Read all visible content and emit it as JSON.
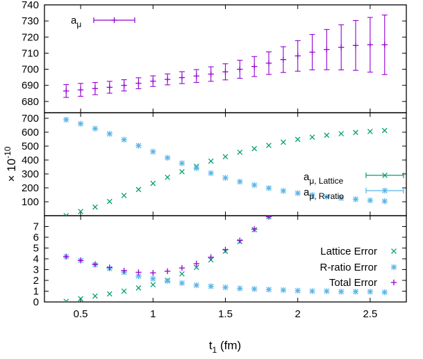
{
  "colors": {
    "purple": "#9400d3",
    "green": "#009e73",
    "blue": "#56b4e9"
  },
  "chart_data": [
    {
      "type": "scatter",
      "panel": "top",
      "xlabel": "t1 (fm)",
      "xlabel_parts": {
        "main": "t",
        "sub": "1",
        "rest": " (fm)"
      },
      "xlim": [
        0.25,
        2.75
      ],
      "ylim": [
        673,
        740
      ],
      "x_ticks": [
        0.5,
        1,
        1.5,
        2,
        2.5
      ],
      "x_tick_labels": [
        "0.5",
        "1",
        "1.5",
        "2",
        "2.5"
      ],
      "y_ticks": [
        680,
        690,
        700,
        710,
        720,
        730,
        740
      ],
      "y_tick_labels": [
        "680",
        "690",
        "700",
        "710",
        "720",
        "730",
        "740"
      ],
      "legend_position": "top-left",
      "series": [
        {
          "name": "aμ",
          "name_parts": {
            "main": "a",
            "sub": "μ"
          },
          "color": "#9400d3",
          "marker": "plus",
          "x": [
            0.4,
            0.5,
            0.6,
            0.7,
            0.8,
            0.9,
            1.0,
            1.1,
            1.2,
            1.3,
            1.4,
            1.5,
            1.6,
            1.7,
            1.8,
            1.9,
            2.0,
            2.1,
            2.2,
            2.3,
            2.4,
            2.5,
            2.6
          ],
          "y": [
            686.5,
            687.2,
            688.0,
            688.8,
            690.0,
            691.3,
            692.6,
            693.7,
            694.8,
            695.8,
            697.0,
            698.4,
            700.0,
            701.7,
            703.8,
            706.0,
            708.3,
            710.6,
            712.2,
            713.6,
            714.8,
            715.2,
            715.2
          ],
          "yerr": [
            4.0,
            4.0,
            3.8,
            3.7,
            3.5,
            3.4,
            3.3,
            3.4,
            3.7,
            4.0,
            4.5,
            5.0,
            5.6,
            6.2,
            7.0,
            8.0,
            9.5,
            11.0,
            12.5,
            14.0,
            15.5,
            17.0,
            18.5
          ]
        }
      ]
    },
    {
      "type": "scatter",
      "panel": "middle",
      "ylabel": "× 10-10",
      "ylabel_parts": {
        "main": "× 10",
        "sup": "-10"
      },
      "xlim": [
        0.25,
        2.75
      ],
      "ylim": [
        0,
        740
      ],
      "y_ticks": [
        100,
        200,
        300,
        400,
        500,
        600,
        700
      ],
      "y_tick_labels": [
        "100",
        "200",
        "300",
        "400",
        "500",
        "600",
        "700"
      ],
      "legend_position": "center-right",
      "series": [
        {
          "name": "aμ, Lattice",
          "name_parts": {
            "main": "a",
            "sub": "μ, Lattice"
          },
          "color": "#009e73",
          "marker": "x",
          "x": [
            0.4,
            0.5,
            0.6,
            0.7,
            0.8,
            0.9,
            1.0,
            1.1,
            1.2,
            1.3,
            1.4,
            1.5,
            1.6,
            1.7,
            1.8,
            1.9,
            2.0,
            2.1,
            2.2,
            2.3,
            2.4,
            2.5,
            2.6
          ],
          "y": [
            0,
            30,
            62,
            102,
            145,
            188,
            232,
            276,
            316,
            355,
            392,
            424,
            456,
            482,
            505,
            528,
            548,
            564,
            578,
            589,
            598,
            605,
            612
          ]
        },
        {
          "name": "aμ, R-ratio",
          "name_parts": {
            "main": "a",
            "sub": "μ, R-ratio"
          },
          "color": "#56b4e9",
          "marker": "star",
          "x": [
            0.4,
            0.5,
            0.6,
            0.7,
            0.8,
            0.9,
            1.0,
            1.1,
            1.2,
            1.3,
            1.4,
            1.5,
            1.6,
            1.7,
            1.8,
            1.9,
            2.0,
            2.1,
            2.2,
            2.3,
            2.4,
            2.5,
            2.6
          ],
          "y": [
            690,
            661,
            626,
            588,
            546,
            503,
            460,
            416,
            377,
            342,
            306,
            272,
            244,
            220,
            198,
            178,
            162,
            148,
            136,
            126,
            118,
            110,
            104
          ]
        }
      ]
    },
    {
      "type": "scatter",
      "panel": "bottom",
      "xlim": [
        0.25,
        2.75
      ],
      "ylim": [
        0,
        8
      ],
      "y_ticks": [
        0,
        1,
        2,
        3,
        4,
        5,
        6,
        7
      ],
      "y_tick_labels": [
        "0",
        "1",
        "2",
        "3",
        "4",
        "5",
        "6",
        "7"
      ],
      "legend_position": "center-right",
      "series": [
        {
          "name": "Lattice Error",
          "color": "#009e73",
          "marker": "x",
          "x": [
            0.4,
            0.5,
            0.6,
            0.7,
            0.8,
            0.9,
            1.0,
            1.1,
            1.2,
            1.3,
            1.4,
            1.5,
            1.6,
            1.7,
            1.8
          ],
          "y": [
            0.05,
            0.3,
            0.55,
            0.75,
            1.0,
            1.3,
            1.6,
            2.0,
            2.6,
            3.2,
            3.9,
            4.7,
            5.6,
            6.7,
            7.9
          ]
        },
        {
          "name": "R-ratio Error",
          "color": "#56b4e9",
          "marker": "star",
          "x": [
            0.4,
            0.5,
            0.6,
            0.7,
            0.8,
            0.9,
            1.0,
            1.1,
            1.2,
            1.3,
            1.4,
            1.5,
            1.6,
            1.7,
            1.8,
            1.9,
            2.0,
            2.1,
            2.2,
            2.3,
            2.4,
            2.5,
            2.6
          ],
          "y": [
            4.2,
            3.85,
            3.45,
            3.1,
            2.75,
            2.4,
            2.15,
            1.95,
            1.75,
            1.55,
            1.45,
            1.35,
            1.25,
            1.2,
            1.15,
            1.1,
            1.05,
            1.0,
            1.0,
            0.95,
            0.95,
            0.95,
            0.9
          ]
        },
        {
          "name": "Total Error",
          "color": "#9400d3",
          "marker": "plus",
          "x": [
            0.4,
            0.5,
            0.6,
            0.7,
            0.8,
            0.9,
            1.0,
            1.1,
            1.2,
            1.3,
            1.4,
            1.5,
            1.6,
            1.7,
            1.8
          ],
          "y": [
            4.2,
            3.85,
            3.5,
            3.2,
            2.9,
            2.75,
            2.7,
            2.85,
            3.15,
            3.55,
            4.15,
            4.85,
            5.7,
            6.75,
            7.9
          ]
        }
      ]
    }
  ]
}
